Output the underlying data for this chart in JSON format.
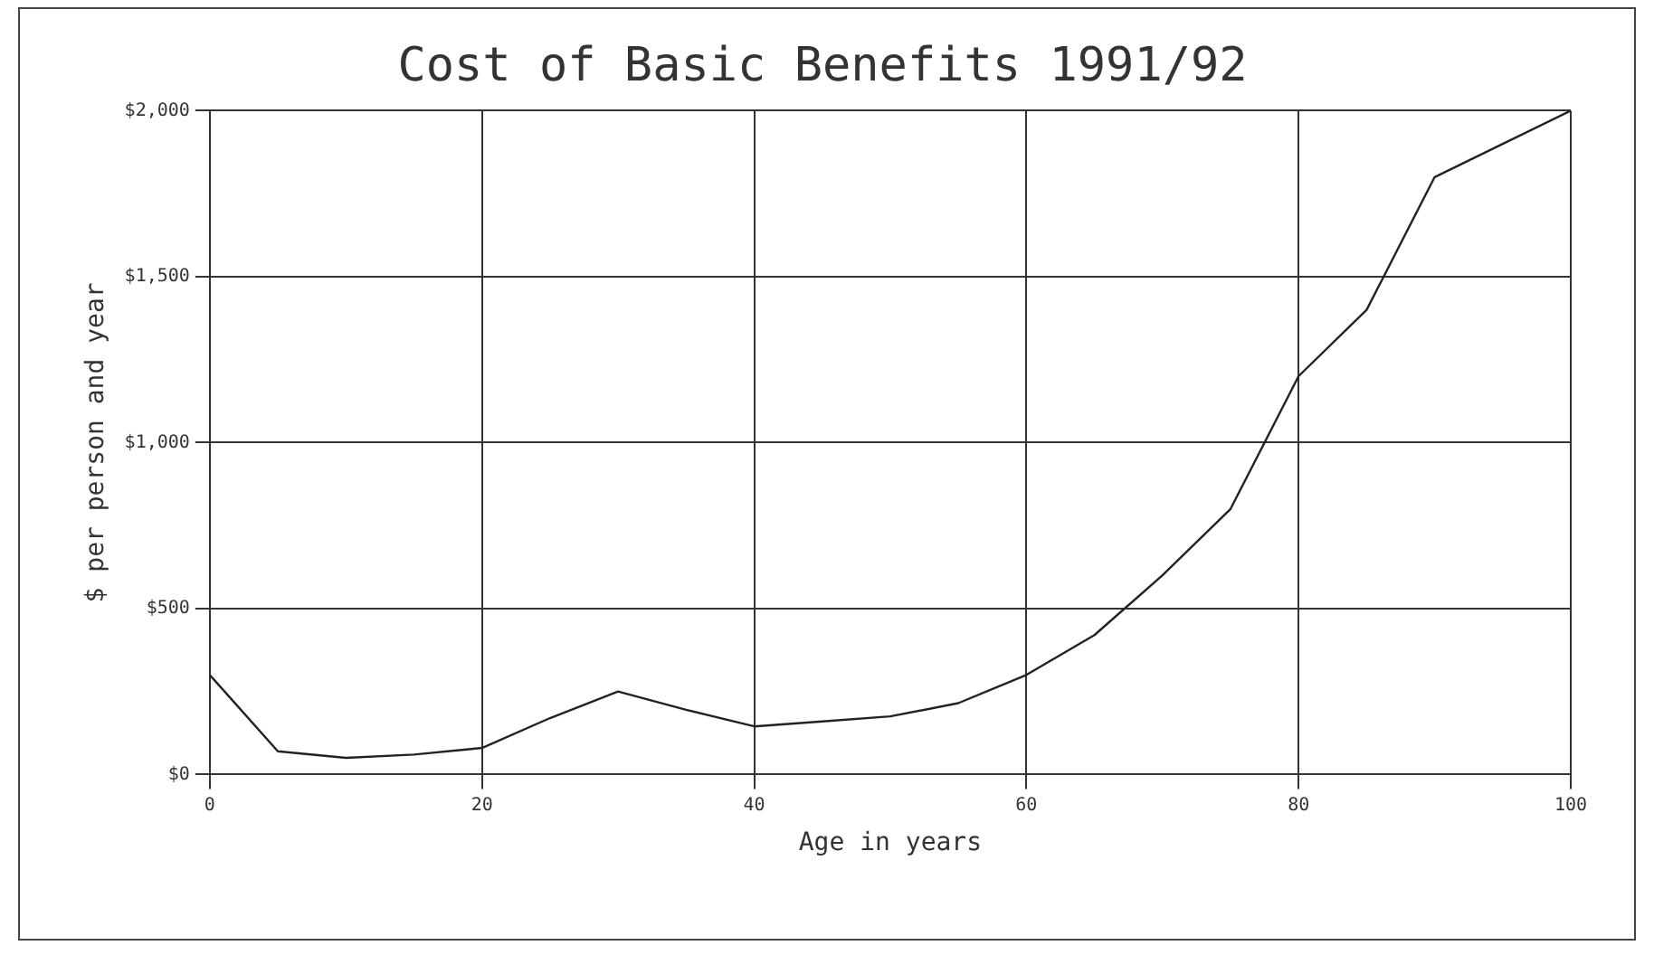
{
  "chart_data": {
    "type": "line",
    "title": "Cost of Basic Benefits 1991/92",
    "xlabel": "Age in years",
    "ylabel": "$ per person and year",
    "x": [
      0,
      5,
      10,
      15,
      20,
      25,
      30,
      35,
      40,
      45,
      50,
      55,
      60,
      65,
      70,
      75,
      80,
      85,
      90,
      95,
      100
    ],
    "series": [
      {
        "color": "#222222",
        "values": [
          300,
          70,
          50,
          60,
          80,
          170,
          250,
          195,
          145,
          160,
          175,
          215,
          300,
          420,
          600,
          800,
          1200,
          1400,
          1800,
          1900,
          2000
        ]
      }
    ],
    "xlim": [
      0,
      100
    ],
    "xticks": [
      0,
      20,
      40,
      60,
      80,
      100
    ],
    "ylim": [
      0,
      2000
    ],
    "yticks": [
      {
        "value": 0,
        "label": "$0"
      },
      {
        "value": 500,
        "label": "$500"
      },
      {
        "value": 1000,
        "label": "$1,000"
      },
      {
        "value": 1500,
        "label": "$1,500"
      },
      {
        "value": 2000,
        "label": "$2,000"
      }
    ],
    "grid": true,
    "legend": false,
    "marker": "none",
    "line_style": "solid"
  }
}
